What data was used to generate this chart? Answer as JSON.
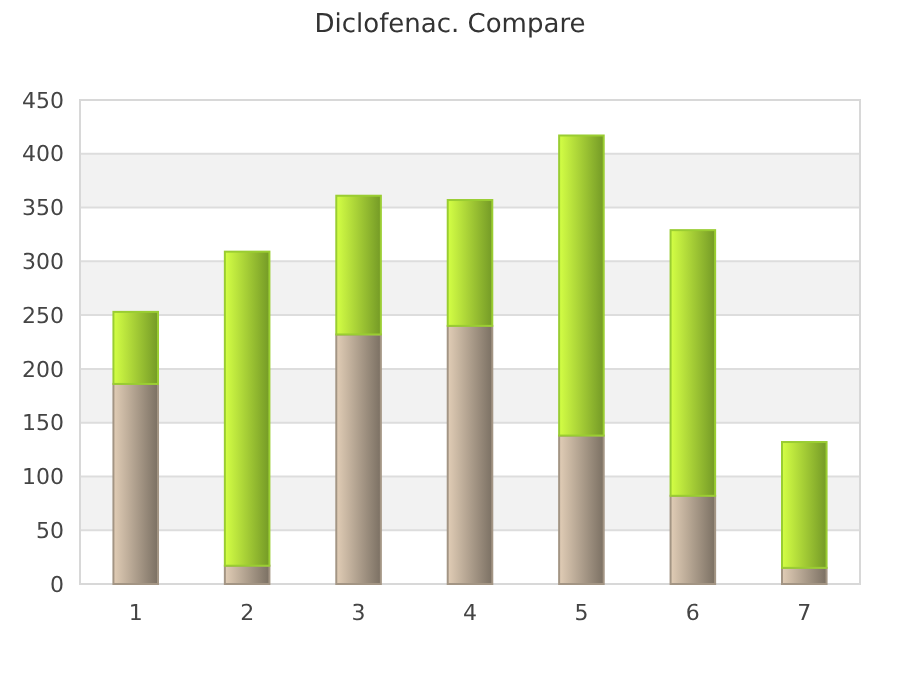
{
  "chart_data": {
    "type": "bar",
    "title": "Diclofenac. Compare",
    "categories": [
      "1",
      "2",
      "3",
      "4",
      "5",
      "6",
      "7"
    ],
    "stacked": true,
    "series": [
      {
        "color": "#a39584",
        "values": [
          186,
          17,
          232,
          240,
          138,
          82,
          15
        ]
      },
      {
        "color": "#9acd32",
        "values": [
          67,
          292,
          129,
          117,
          279,
          247,
          117
        ]
      }
    ],
    "ylim": [
      0,
      450
    ],
    "yticks": [
      0,
      50,
      100,
      150,
      200,
      250,
      300,
      350,
      400,
      450
    ],
    "grid": "y"
  }
}
